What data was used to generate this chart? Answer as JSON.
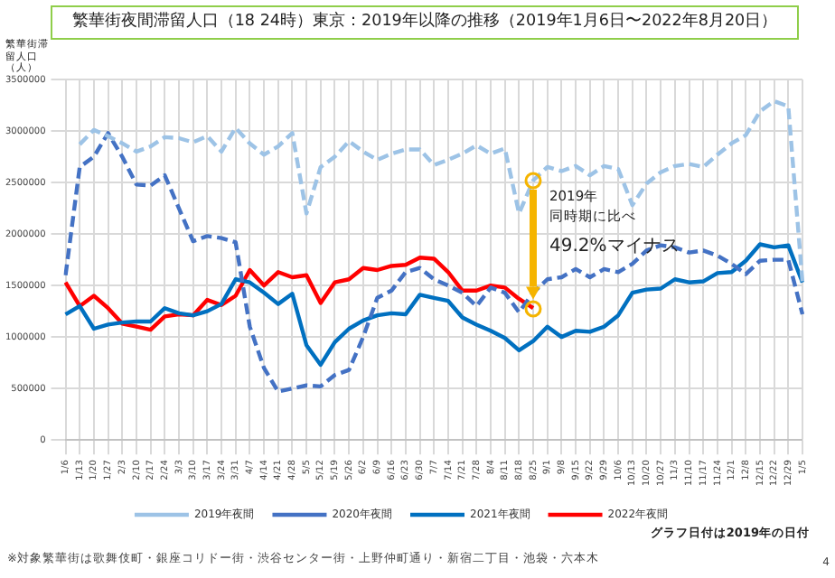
{
  "chart_data": {
    "type": "line",
    "title": "繁華街夜間滞留人口（18 24時）東京：2019年以降の推移（2019年1月6日〜2022年8月20日）",
    "ylabel": "繁華街滞留人口（人）",
    "categories": [
      "1/6",
      "1/13",
      "1/20",
      "1/27",
      "2/3",
      "2/10",
      "2/17",
      "2/24",
      "3/3",
      "3/10",
      "3/17",
      "3/24",
      "3/31",
      "4/7",
      "4/14",
      "4/21",
      "4/28",
      "5/5",
      "5/12",
      "5/19",
      "5/26",
      "6/2",
      "6/9",
      "6/16",
      "6/23",
      "6/30",
      "7/7",
      "7/14",
      "7/21",
      "7/28",
      "8/4",
      "8/11",
      "8/18",
      "8/25",
      "9/1",
      "9/8",
      "9/15",
      "9/22",
      "9/29",
      "10/6",
      "10/13",
      "10/20",
      "10/27",
      "11/3",
      "11/10",
      "11/17",
      "11/24",
      "12/1",
      "12/8",
      "12/15",
      "12/22",
      "12/29",
      "1/5"
    ],
    "series": [
      {
        "name": "2019年夜間",
        "color": "#9dc3e6",
        "line_style": "dashed",
        "values": [
          null,
          2870000,
          3010000,
          2950000,
          2880000,
          2800000,
          2850000,
          2940000,
          2930000,
          2890000,
          2950000,
          2800000,
          3030000,
          2880000,
          2770000,
          2850000,
          2980000,
          2200000,
          2650000,
          2750000,
          2900000,
          2800000,
          2720000,
          2780000,
          2820000,
          2820000,
          2670000,
          2720000,
          2780000,
          2860000,
          2780000,
          2830000,
          2200000,
          2520000,
          2650000,
          2610000,
          2660000,
          2570000,
          2660000,
          2630000,
          2280000,
          2490000,
          2600000,
          2660000,
          2680000,
          2650000,
          2770000,
          2880000,
          2960000,
          3190000,
          3290000,
          3240000,
          1530000
        ]
      },
      {
        "name": "2020年夜間",
        "color": "#4472c4",
        "line_style": "dashed",
        "values": [
          1600000,
          2650000,
          2750000,
          2980000,
          2750000,
          2480000,
          2470000,
          2570000,
          2250000,
          1930000,
          1980000,
          1960000,
          1920000,
          1100000,
          700000,
          470000,
          500000,
          530000,
          520000,
          630000,
          680000,
          1000000,
          1380000,
          1450000,
          1630000,
          1670000,
          1560000,
          1500000,
          1430000,
          1300000,
          1480000,
          1430000,
          1240000,
          1430000,
          1560000,
          1580000,
          1660000,
          1580000,
          1660000,
          1630000,
          1710000,
          1840000,
          1890000,
          1870000,
          1820000,
          1840000,
          1790000,
          1710000,
          1610000,
          1740000,
          1750000,
          1750000,
          1220000
        ]
      },
      {
        "name": "2021年夜間",
        "color": "#0070c0",
        "line_style": "solid",
        "values": [
          1220000,
          1300000,
          1080000,
          1120000,
          1140000,
          1150000,
          1150000,
          1280000,
          1230000,
          1210000,
          1250000,
          1320000,
          1560000,
          1530000,
          1430000,
          1320000,
          1420000,
          920000,
          730000,
          950000,
          1080000,
          1160000,
          1210000,
          1230000,
          1220000,
          1410000,
          1380000,
          1350000,
          1190000,
          1120000,
          1060000,
          990000,
          870000,
          960000,
          1100000,
          1000000,
          1060000,
          1050000,
          1100000,
          1210000,
          1430000,
          1460000,
          1470000,
          1560000,
          1530000,
          1540000,
          1620000,
          1630000,
          1740000,
          1900000,
          1870000,
          1890000,
          1530000
        ]
      },
      {
        "name": "2022年夜間",
        "color": "#ff0000",
        "line_style": "solid",
        "values": [
          1530000,
          1300000,
          1400000,
          1280000,
          1130000,
          1100000,
          1070000,
          1200000,
          1220000,
          1210000,
          1360000,
          1310000,
          1400000,
          1650000,
          1500000,
          1630000,
          1580000,
          1600000,
          1330000,
          1530000,
          1560000,
          1670000,
          1650000,
          1690000,
          1700000,
          1770000,
          1760000,
          1630000,
          1450000,
          1450000,
          1500000,
          1480000,
          1370000,
          1280000,
          null,
          null,
          null,
          null,
          null,
          null,
          null,
          null,
          null,
          null,
          null,
          null,
          null,
          null,
          null,
          null,
          null,
          null,
          null
        ]
      }
    ],
    "ylim": [
      0,
      3500000
    ],
    "yticks": [
      0,
      500000,
      1000000,
      1500000,
      2000000,
      2500000,
      3000000,
      3500000
    ],
    "grid": true,
    "legend": "bottom",
    "marker": "none",
    "annotations": [
      "2019年",
      "同時期に比べ",
      "49.2%マイナス",
      "※対象繁華街は歌舞伎町・銀座コリドー街・渋谷センター街・上野仲町通り・新宿二丁目・池袋・六本木",
      "グラフ日付は2019年の日付",
      "4"
    ]
  }
}
